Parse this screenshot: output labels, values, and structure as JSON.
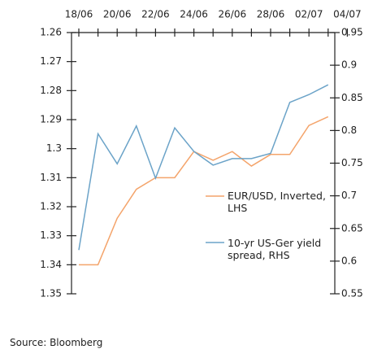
{
  "chart_data": {
    "type": "line",
    "categories": [
      "18/06",
      null,
      "20/06",
      null,
      "22/06",
      null,
      "24/06",
      null,
      "26/06",
      null,
      "28/06",
      null,
      "02/07",
      null,
      "04/07"
    ],
    "series": [
      {
        "name": "EUR/USD, Inverted, LHS",
        "color": "#f4a46b",
        "axis": "y",
        "values": [
          1.34,
          1.34,
          1.324,
          1.314,
          1.31,
          1.31,
          1.301,
          1.304,
          1.301,
          1.306,
          1.302,
          1.302,
          1.292,
          1.289,
          null
        ]
      },
      {
        "name": "10-yr US-Ger yield spread, RHS",
        "color": "#6ba3c8",
        "axis": "y2",
        "values": [
          0.617,
          0.795,
          0.749,
          0.807,
          0.727,
          0.804,
          0.768,
          0.747,
          0.757,
          0.757,
          0.765,
          0.843,
          0.855,
          0.87,
          null
        ]
      }
    ],
    "ylim": [
      1.26,
      1.35
    ],
    "y_inverted": true,
    "yticks": [
      1.26,
      1.27,
      1.28,
      1.29,
      1.3,
      1.31,
      1.32,
      1.33,
      1.34,
      1.35
    ],
    "y2lim": [
      0.55,
      0.95
    ],
    "y2ticks": [
      0.95,
      0.9,
      0.85,
      0.8,
      0.75,
      0.7,
      0.65,
      0.6,
      0.55
    ]
  },
  "source": "Source: Bloomberg"
}
